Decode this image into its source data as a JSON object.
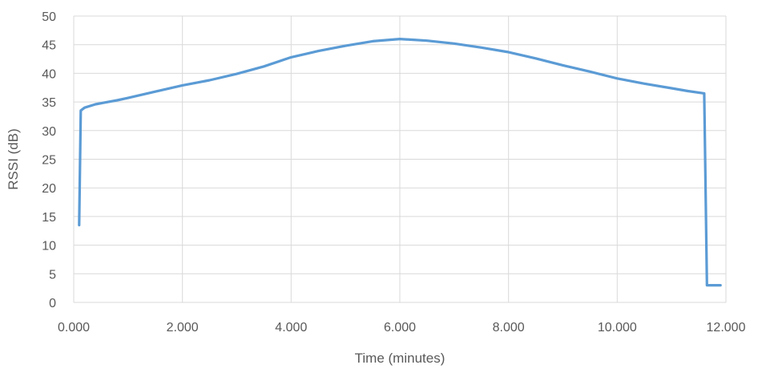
{
  "chart_data": {
    "type": "line",
    "title": "",
    "xlabel": "Time (minutes)",
    "ylabel": "RSSI (dB)",
    "xlim": [
      0,
      12
    ],
    "ylim": [
      0,
      50
    ],
    "grid": true,
    "legend": "none",
    "x_tick_values": [
      0,
      2,
      4,
      6,
      8,
      10,
      12
    ],
    "x_tick_labels": [
      "0.000",
      "2.000",
      "4.000",
      "6.000",
      "8.000",
      "10.000",
      "12.000"
    ],
    "y_tick_values": [
      0,
      5,
      10,
      15,
      20,
      25,
      30,
      35,
      40,
      45,
      50
    ],
    "y_tick_labels": [
      "0",
      "5",
      "10",
      "15",
      "20",
      "25",
      "30",
      "35",
      "40",
      "45",
      "50"
    ],
    "series": [
      {
        "color": "#5b9bd5",
        "points": [
          [
            0.1,
            13.5
          ],
          [
            0.13,
            33.5
          ],
          [
            0.2,
            34.0
          ],
          [
            0.4,
            34.6
          ],
          [
            0.8,
            35.3
          ],
          [
            1.0,
            35.7
          ],
          [
            1.5,
            36.8
          ],
          [
            2.0,
            37.9
          ],
          [
            2.5,
            38.8
          ],
          [
            3.0,
            39.9
          ],
          [
            3.5,
            41.2
          ],
          [
            4.0,
            42.8
          ],
          [
            4.5,
            43.9
          ],
          [
            5.0,
            44.8
          ],
          [
            5.5,
            45.6
          ],
          [
            6.0,
            46.0
          ],
          [
            6.5,
            45.7
          ],
          [
            7.0,
            45.2
          ],
          [
            7.5,
            44.5
          ],
          [
            8.0,
            43.7
          ],
          [
            8.5,
            42.6
          ],
          [
            9.0,
            41.4
          ],
          [
            9.5,
            40.3
          ],
          [
            10.0,
            39.1
          ],
          [
            10.5,
            38.2
          ],
          [
            11.0,
            37.4
          ],
          [
            11.3,
            36.9
          ],
          [
            11.6,
            36.5
          ],
          [
            11.65,
            3.0
          ],
          [
            11.9,
            3.0
          ]
        ]
      }
    ]
  }
}
